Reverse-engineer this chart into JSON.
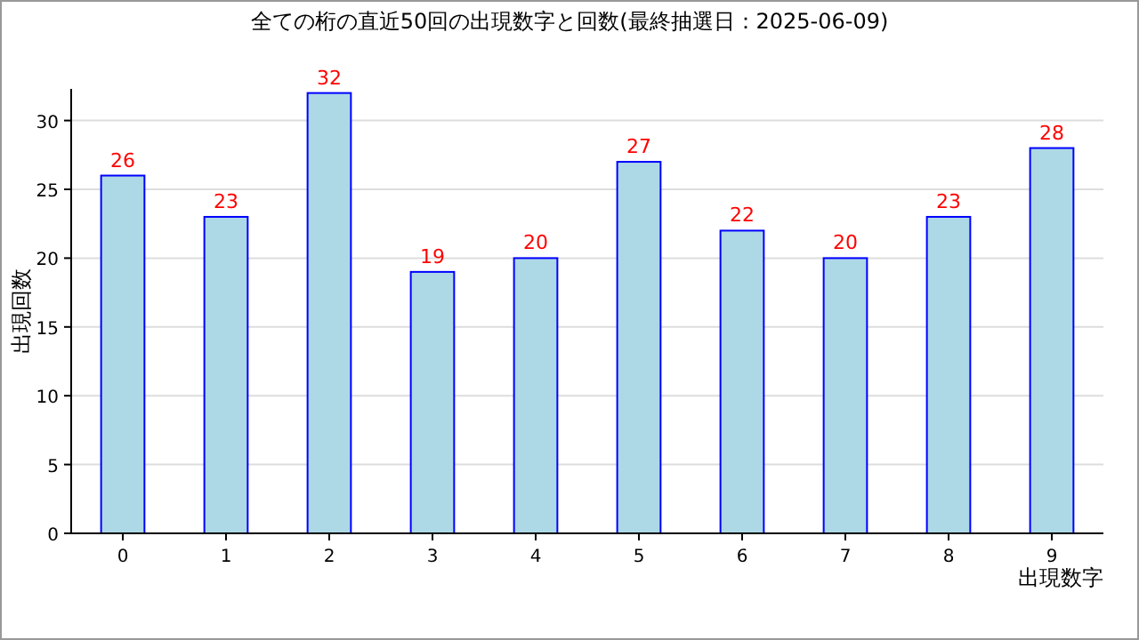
{
  "chart_data": {
    "type": "bar",
    "title": "全ての桁の直近50回の出現数字と回数(最終抽選日：2025-06-09)",
    "xlabel": "出現数字",
    "ylabel": "出現回数",
    "categories": [
      "0",
      "1",
      "2",
      "3",
      "4",
      "5",
      "6",
      "7",
      "8",
      "9"
    ],
    "values": [
      26,
      23,
      32,
      19,
      20,
      27,
      22,
      20,
      23,
      28
    ],
    "color": "#add8e6",
    "ylim": [
      0,
      32.3
    ],
    "yticks": [
      0,
      5,
      10,
      15,
      20,
      25,
      30
    ],
    "grid": "y",
    "data_labels": true
  }
}
